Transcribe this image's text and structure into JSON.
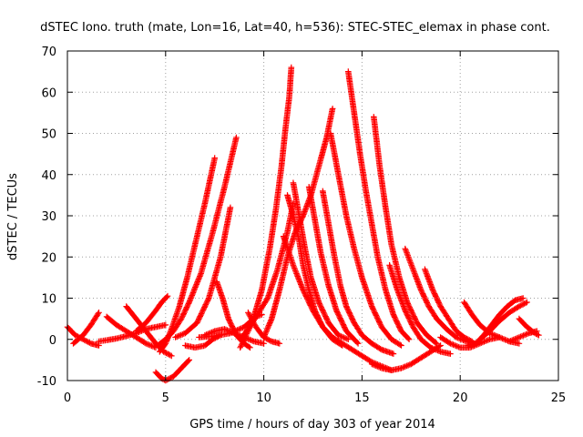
{
  "chart_data": {
    "type": "scatter",
    "title": "dSTEC Iono. truth (mate, Lon=16, Lat=40, h=536): STEC-STEC_elemax in phase cont.",
    "xlabel": "GPS time / hours of day 303 of year 2014",
    "ylabel": "dSTEC  / TECUs",
    "xlim": [
      0,
      25
    ],
    "ylim": [
      -10,
      70
    ],
    "xticks": [
      0,
      5,
      10,
      15,
      20,
      25
    ],
    "yticks": [
      -10,
      0,
      10,
      20,
      30,
      40,
      50,
      60,
      70
    ],
    "grid": true,
    "marker": "+",
    "color": "#ff0000",
    "series": [
      {
        "x": [
          0.0,
          0.4,
          0.8,
          1.2,
          1.6
        ],
        "y": [
          3.0,
          1.0,
          0.0,
          -1.0,
          -1.5
        ]
      },
      {
        "x": [
          0.3,
          0.8,
          1.2,
          1.6
        ],
        "y": [
          -1.0,
          1.0,
          3.5,
          6.5
        ]
      },
      {
        "x": [
          1.6,
          2.0,
          2.5,
          3.0,
          3.5,
          4.0,
          4.5,
          5.0
        ],
        "y": [
          -0.5,
          -0.2,
          0.2,
          0.8,
          1.5,
          2.5,
          3.0,
          3.5
        ]
      },
      {
        "x": [
          2.0,
          2.5,
          3.0,
          3.5,
          4.0,
          4.5
        ],
        "y": [
          5.5,
          3.5,
          2.0,
          0.5,
          -1.0,
          -2.0
        ]
      },
      {
        "x": [
          3.0,
          3.5,
          4.0,
          4.5,
          4.9,
          5.3
        ],
        "y": [
          8.0,
          5.0,
          2.0,
          -1.0,
          -3.0,
          -4.0
        ]
      },
      {
        "x": [
          4.5,
          4.8,
          5.0,
          5.4,
          5.8,
          6.2
        ],
        "y": [
          -8.0,
          -9.5,
          -10.0,
          -9.0,
          -7.0,
          -5.0
        ]
      },
      {
        "x": [
          3.5,
          4.0,
          4.5,
          4.8,
          5.1
        ],
        "y": [
          2.0,
          4.0,
          7.0,
          9.0,
          10.5
        ]
      },
      {
        "x": [
          4.7,
          5.0,
          5.3,
          5.7,
          6.1,
          6.6,
          7.0,
          7.5
        ],
        "y": [
          -3.0,
          -1.0,
          2.5,
          8.0,
          15.0,
          25.0,
          33.0,
          44.0
        ]
      },
      {
        "x": [
          4.6,
          5.0,
          5.4,
          5.8,
          6.2,
          6.8,
          7.4,
          8.0,
          8.6
        ],
        "y": [
          -1.5,
          0.0,
          2.0,
          5.0,
          9.0,
          16.0,
          26.0,
          37.0,
          49.0
        ]
      },
      {
        "x": [
          5.5,
          6.0,
          6.6,
          7.2,
          7.8,
          8.3
        ],
        "y": [
          0.5,
          1.5,
          4.0,
          10.0,
          20.0,
          32.0
        ]
      },
      {
        "x": [
          6.0,
          6.5,
          7.0,
          7.4,
          7.8
        ],
        "y": [
          -1.5,
          -2.0,
          -1.5,
          0.0,
          1.0
        ]
      },
      {
        "x": [
          7.6,
          7.9,
          8.2,
          8.6,
          9.0,
          9.3
        ],
        "y": [
          14.0,
          10.0,
          5.0,
          1.0,
          -1.0,
          -2.0
        ]
      },
      {
        "x": [
          7.0,
          7.5,
          8.0,
          8.5,
          9.0,
          9.5,
          10.0
        ],
        "y": [
          1.0,
          2.0,
          2.5,
          1.5,
          0.5,
          -0.5,
          -1.0
        ]
      },
      {
        "x": [
          8.8,
          9.0,
          9.3,
          9.6,
          9.9
        ],
        "y": [
          -2.0,
          0.0,
          3.0,
          5.5,
          6.0
        ]
      },
      {
        "x": [
          9.2,
          9.6,
          10.0,
          10.4,
          10.8
        ],
        "y": [
          6.5,
          3.0,
          0.5,
          -0.5,
          -1.0
        ]
      },
      {
        "x": [
          6.7,
          7.5,
          8.3,
          9.0,
          9.6,
          10.2,
          10.7,
          11.2,
          11.5
        ],
        "y": [
          0.5,
          0.8,
          1.5,
          3.0,
          5.5,
          10.0,
          17.0,
          26.0,
          33.0
        ]
      },
      {
        "x": [
          8.9,
          9.4,
          9.9,
          10.3,
          10.6,
          10.9,
          11.1,
          11.3,
          11.4
        ],
        "y": [
          0.5,
          4.0,
          12.0,
          22.0,
          31.0,
          42.0,
          51.0,
          59.0,
          66.0
        ]
      },
      {
        "x": [
          10.0,
          10.4,
          10.8,
          11.2,
          11.6,
          12.0,
          12.4,
          12.8,
          13.2,
          13.5
        ],
        "y": [
          0.5,
          5.0,
          12.0,
          20.0,
          26.0,
          30.0,
          35.0,
          42.0,
          49.0,
          56.0
        ]
      },
      {
        "x": [
          11.2,
          11.5,
          11.8,
          12.0,
          12.3,
          12.6,
          13.0,
          13.5,
          14.0
        ],
        "y": [
          35.0,
          30.0,
          24.0,
          18.0,
          12.0,
          7.0,
          3.0,
          0.0,
          -1.5
        ]
      },
      {
        "x": [
          11.5,
          11.8,
          12.1,
          12.4,
          12.8,
          13.3,
          13.8,
          14.3
        ],
        "y": [
          38.0,
          30.0,
          22.0,
          15.0,
          9.0,
          4.0,
          1.0,
          0.0
        ]
      },
      {
        "x": [
          12.3,
          12.6,
          12.9,
          13.3,
          13.7,
          14.2,
          14.8
        ],
        "y": [
          37.0,
          29.0,
          21.0,
          13.0,
          7.0,
          2.0,
          -1.0
        ]
      },
      {
        "x": [
          11.0,
          11.5,
          12.0,
          12.5,
          13.0,
          13.5,
          14.0,
          14.5,
          15.0,
          15.5,
          16.0,
          16.5
        ],
        "y": [
          25.0,
          18.0,
          12.0,
          7.0,
          3.0,
          0.5,
          -1.0,
          -2.5,
          -4.0,
          -5.5,
          -6.5,
          -7.5
        ]
      },
      {
        "x": [
          13.0,
          13.3,
          13.6,
          13.9,
          14.2,
          14.6,
          15.0,
          15.5,
          16.0,
          16.6
        ],
        "y": [
          36.0,
          28.0,
          20.0,
          13.0,
          8.0,
          4.0,
          1.0,
          -1.0,
          -2.5,
          -3.5
        ]
      },
      {
        "x": [
          13.4,
          13.8,
          14.2,
          14.6,
          15.0,
          15.5,
          16.0,
          16.5,
          17.0
        ],
        "y": [
          50.0,
          40.0,
          30.0,
          22.0,
          15.0,
          8.0,
          3.0,
          0.0,
          -1.5
        ]
      },
      {
        "x": [
          14.3,
          14.6,
          14.9,
          15.2,
          15.5,
          15.8,
          16.2,
          16.6,
          17.0,
          17.4
        ],
        "y": [
          65.0,
          55.0,
          45.0,
          36.0,
          28.0,
          20.0,
          12.0,
          6.0,
          2.0,
          0.0
        ]
      },
      {
        "x": [
          15.6,
          15.9,
          16.2,
          16.5,
          16.9,
          17.3,
          17.8,
          18.3,
          18.8
        ],
        "y": [
          54.0,
          42.0,
          32.0,
          23.0,
          15.0,
          9.0,
          4.0,
          1.0,
          -1.0
        ]
      },
      {
        "x": [
          15.5,
          16.0,
          16.5,
          17.0,
          17.5,
          18.0,
          18.5,
          19.0
        ],
        "y": [
          -6.0,
          -7.0,
          -7.5,
          -7.0,
          -6.0,
          -4.5,
          -3.0,
          -1.5
        ]
      },
      {
        "x": [
          16.4,
          16.8,
          17.2,
          17.6,
          18.0,
          18.5,
          19.0,
          19.5
        ],
        "y": [
          18.0,
          12.0,
          7.0,
          3.0,
          0.0,
          -2.0,
          -3.0,
          -3.5
        ]
      },
      {
        "x": [
          17.2,
          17.6,
          18.0,
          18.4,
          18.8,
          19.3,
          19.8,
          20.3,
          20.8
        ],
        "y": [
          22.0,
          17.0,
          12.0,
          8.0,
          5.0,
          2.5,
          0.5,
          -0.5,
          -1.0
        ]
      },
      {
        "x": [
          18.2,
          18.6,
          19.0,
          19.4,
          19.8,
          20.2,
          20.6
        ],
        "y": [
          17.0,
          12.0,
          8.0,
          5.0,
          2.0,
          0.5,
          -0.5
        ]
      },
      {
        "x": [
          19.0,
          19.5,
          20.0,
          20.5,
          21.0,
          21.5,
          22.0
        ],
        "y": [
          0.5,
          -1.0,
          -2.0,
          -2.0,
          -1.0,
          0.0,
          0.5
        ]
      },
      {
        "x": [
          20.2,
          20.6,
          21.0,
          21.5,
          22.0,
          22.5,
          23.0
        ],
        "y": [
          9.0,
          6.0,
          3.5,
          1.5,
          0.5,
          -0.5,
          -1.0
        ]
      },
      {
        "x": [
          20.4,
          20.8,
          21.2,
          21.6,
          22.0,
          22.4,
          22.8,
          23.2
        ],
        "y": [
          -1.5,
          -1.0,
          1.0,
          3.5,
          6.0,
          8.0,
          9.5,
          10.0
        ]
      },
      {
        "x": [
          21.0,
          21.5,
          22.0,
          22.5,
          23.0,
          23.4
        ],
        "y": [
          0.0,
          2.0,
          4.5,
          6.5,
          8.0,
          9.0
        ]
      },
      {
        "x": [
          22.5,
          23.0,
          23.5,
          23.9
        ],
        "y": [
          -0.5,
          0.5,
          1.5,
          2.0
        ]
      },
      {
        "x": [
          23.0,
          23.4,
          23.8,
          24.0
        ],
        "y": [
          5.0,
          3.0,
          1.5,
          1.0
        ]
      }
    ]
  }
}
